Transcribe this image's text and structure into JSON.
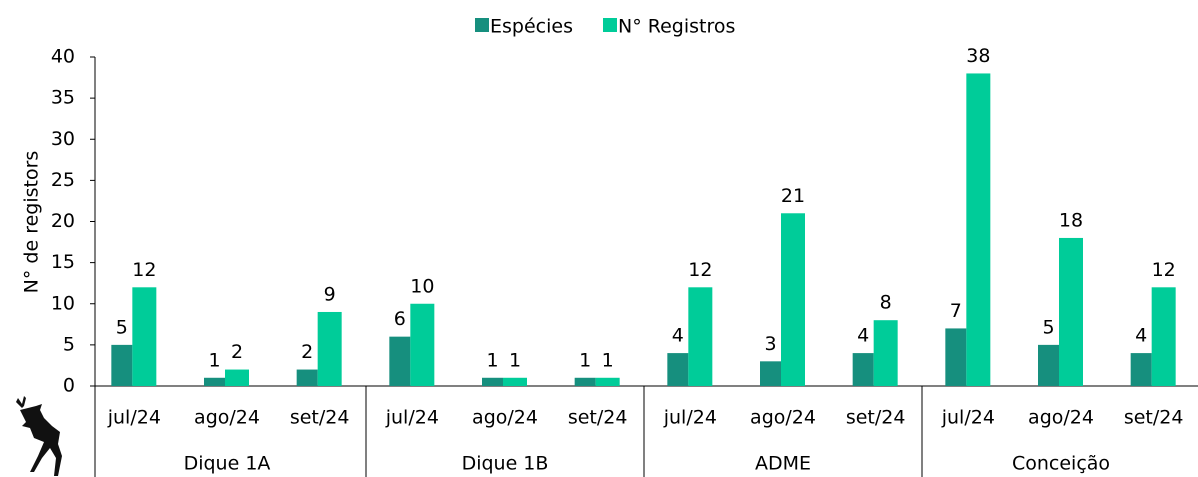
{
  "chart_data": {
    "type": "bar",
    "y_label": "N° de registors",
    "categories": [
      "jul/24",
      "ago/24",
      "set/24",
      "jul/24",
      "ago/24",
      "set/24",
      "jul/24",
      "ago/24",
      "set/24",
      "jul/24",
      "ago/24",
      "set/24"
    ],
    "groups": [
      "Dique 1A",
      "Dique 1B",
      "ADME",
      "Conceição"
    ],
    "series": [
      {
        "name": "Espécies",
        "color": "#168f7e",
        "values": [
          5,
          1,
          2,
          6,
          1,
          1,
          4,
          3,
          4,
          7,
          5,
          4
        ]
      },
      {
        "name": "N° Registros",
        "color": "#00cc99",
        "values": [
          12,
          2,
          9,
          10,
          1,
          1,
          12,
          21,
          8,
          38,
          18,
          12
        ]
      }
    ],
    "ylim": [
      0,
      40
    ],
    "yticks": [
      0,
      5,
      10,
      15,
      20,
      25,
      30,
      35,
      40
    ],
    "grid": false,
    "legend": "top"
  }
}
